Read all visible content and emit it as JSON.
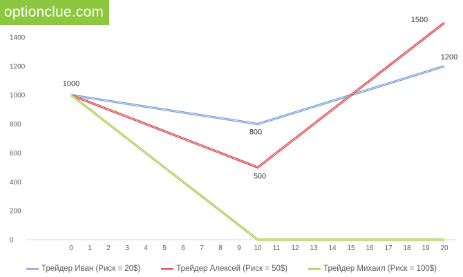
{
  "watermark": "optionclue.com",
  "chart_data": {
    "type": "line",
    "title": "",
    "xlabel": "",
    "ylabel": "",
    "x": [
      0,
      1,
      2,
      3,
      4,
      5,
      6,
      7,
      8,
      9,
      10,
      11,
      12,
      13,
      14,
      15,
      16,
      17,
      18,
      19,
      20
    ],
    "ylim": [
      0,
      1500
    ],
    "yticks": [
      0,
      200,
      400,
      600,
      800,
      1000,
      1200,
      1400
    ],
    "grid": false,
    "legend_position": "bottom",
    "series": [
      {
        "name": "Трейдер Иван (Риск = 20$)",
        "color": "#6f9ad6",
        "values": [
          1000,
          980,
          960,
          940,
          920,
          900,
          880,
          860,
          840,
          820,
          800,
          840,
          880,
          920,
          960,
          1000,
          1040,
          1080,
          1120,
          1160,
          1200
        ]
      },
      {
        "name": "Трейдер Алексей (Риск = 50$)",
        "color": "#d9343a",
        "values": [
          1000,
          950,
          900,
          850,
          800,
          750,
          700,
          650,
          600,
          550,
          500,
          600,
          700,
          800,
          900,
          1000,
          1100,
          1200,
          1300,
          1400,
          1500
        ]
      },
      {
        "name": "Трейдер Михаил (Риск = 100$)",
        "color": "#9dc73f",
        "values": [
          1000,
          900,
          800,
          700,
          600,
          500,
          400,
          300,
          200,
          100,
          0,
          0,
          0,
          0,
          0,
          0,
          0,
          0,
          0,
          0,
          0
        ]
      }
    ],
    "annotations": [
      {
        "x": 0,
        "y": 1000,
        "text": "1000"
      },
      {
        "x": 10,
        "y": 800,
        "text": "800"
      },
      {
        "x": 10,
        "y": 500,
        "text": "500"
      },
      {
        "x": 20,
        "y": 1500,
        "text": "1500"
      },
      {
        "x": 20,
        "y": 1200,
        "text": "1200"
      }
    ]
  }
}
